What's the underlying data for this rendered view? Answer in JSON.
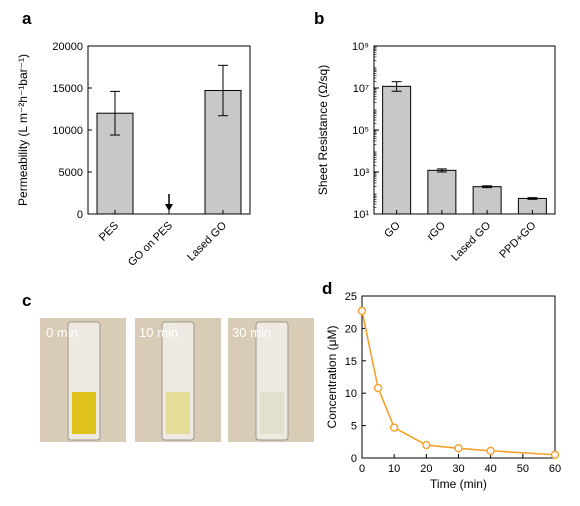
{
  "panels": {
    "a": "a",
    "b": "b",
    "c": "c",
    "d": "d"
  },
  "photo_labels": [
    "0 min",
    "10 min",
    "30 min"
  ],
  "colors": {
    "bar_fill": "#c8c8c8",
    "line": "#f5a02a",
    "photo_bg": "#d8ccb6",
    "liquid_0": "#e0c21c",
    "liquid_10": "#e6dc9a",
    "liquid_30": "#e2e0cc"
  },
  "chart_data": [
    {
      "type": "bar",
      "panel": "a",
      "categories": [
        "PES",
        "GO on PES",
        "Lased GO"
      ],
      "values": [
        12000,
        0,
        14700
      ],
      "error": [
        2600,
        0,
        3000
      ],
      "annotation": "arrow-down at GO on PES",
      "ylabel": "Permeability (L m⁻²h⁻¹bar⁻¹)",
      "ylim": [
        0,
        20000
      ],
      "yticks": [
        "0",
        "5000",
        "10000",
        "15000",
        "20000"
      ]
    },
    {
      "type": "bar",
      "panel": "b",
      "categories": [
        "GO",
        "rGO",
        "Lased GO",
        "PPD+GO"
      ],
      "values": [
        12000000,
        1200,
        200,
        55
      ],
      "error_low": [
        7000000,
        1000,
        180,
        50
      ],
      "error_high": [
        20000000,
        1400,
        220,
        60
      ],
      "ylabel": "Sheet Resistance (Ω/sq)",
      "yscale": "log",
      "ylim": [
        10,
        1000000000
      ],
      "yticks": [
        "10¹",
        "10³",
        "10⁵",
        "10⁷",
        "10⁹"
      ]
    },
    {
      "type": "line",
      "panel": "d",
      "x": [
        0,
        5,
        10,
        20,
        30,
        40,
        60
      ],
      "y": [
        22.7,
        10.8,
        4.7,
        2.0,
        1.5,
        1.1,
        0.5
      ],
      "xlabel": "Time (min)",
      "ylabel": "Concentration (μM)",
      "xlim": [
        0,
        60
      ],
      "ylim": [
        0,
        25
      ],
      "xticks": [
        "0",
        "10",
        "20",
        "30",
        "40",
        "50",
        "60"
      ],
      "yticks": [
        "0",
        "5",
        "10",
        "15",
        "20",
        "25"
      ]
    }
  ]
}
